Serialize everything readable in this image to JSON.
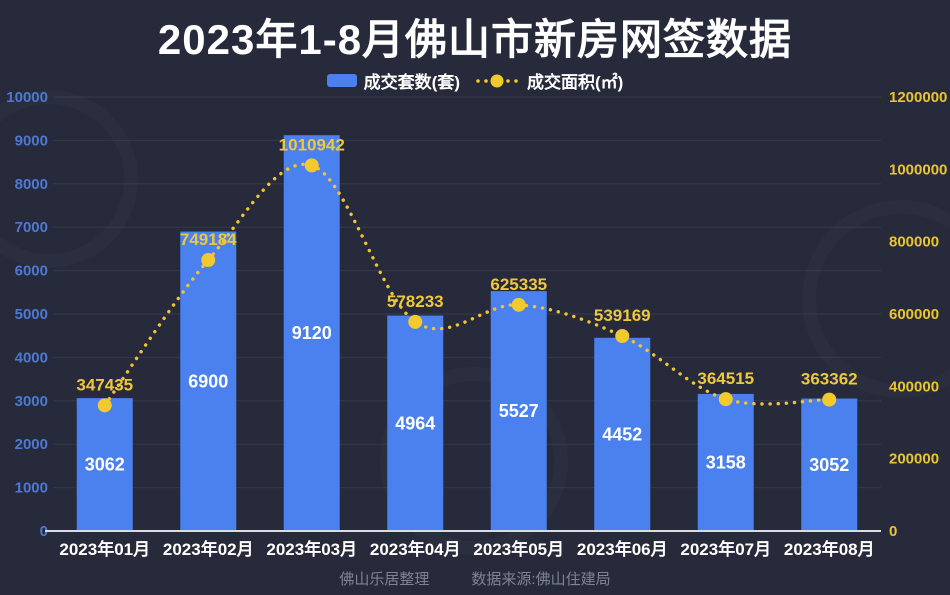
{
  "title": "2023年1-8月佛山市新房网签数据",
  "legend": {
    "bar_label": "成交套数(套)",
    "line_label": "成交面积(㎡)"
  },
  "footer": {
    "credit": "佛山乐居整理",
    "source": "数据来源:佛山住建局"
  },
  "colors": {
    "background": "#272a3b",
    "bar": "#4b80ef",
    "line": "#f0c52f",
    "marker": "#f2ca2e",
    "line_value_label": "#eec83c",
    "bar_value_label": "#ffffff",
    "left_axis_label": "#4d79d4",
    "right_axis_label": "#e9c52f",
    "x_axis_label": "#ffffff",
    "grid": "rgba(255,255,255,0.07)",
    "baseline": "#d9dce3"
  },
  "chart_data": {
    "type": "bar",
    "subtype": "bar+line-combo",
    "title": "2023年1-8月佛山市新房网签数据",
    "categories": [
      "2023年01月",
      "2023年02月",
      "2023年03月",
      "2023年04月",
      "2023年05月",
      "2023年06月",
      "2023年07月",
      "2023年08月"
    ],
    "series": [
      {
        "name": "成交套数(套)",
        "type": "bar",
        "axis": "left",
        "values": [
          3062,
          6900,
          9120,
          4964,
          5527,
          4452,
          3158,
          3052
        ]
      },
      {
        "name": "成交面积(㎡)",
        "type": "line",
        "style": "dotted-smooth",
        "axis": "right",
        "values": [
          347435,
          749184,
          1010942,
          578233,
          625335,
          539169,
          364515,
          363362
        ]
      }
    ],
    "left_axis": {
      "min": 0,
      "max": 10000,
      "step": 1000,
      "ticks": [
        0,
        1000,
        2000,
        3000,
        4000,
        5000,
        6000,
        7000,
        8000,
        9000,
        10000
      ]
    },
    "right_axis": {
      "min": 0,
      "max": 1200000,
      "step": 200000,
      "ticks": [
        0,
        200000,
        400000,
        600000,
        800000,
        1000000,
        1200000
      ]
    },
    "grid": true,
    "legend_position": "top",
    "data_labels": true
  }
}
